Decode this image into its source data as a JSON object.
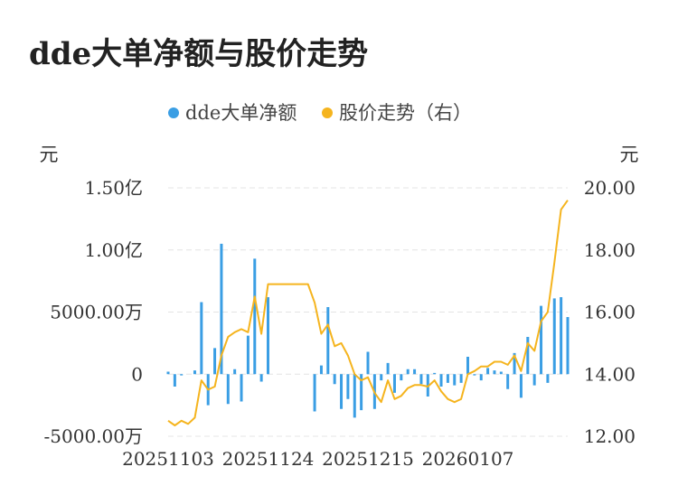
{
  "title": "dde大单净额与股价走势",
  "chart_data": {
    "type": "bar",
    "title": "dde大单净额与股价走势",
    "legend_position": "top-center",
    "grid": true,
    "left_axis": {
      "unit": "元",
      "ylim": [
        -50000000,
        150000000
      ],
      "ticks": [
        {
          "value": 150000000,
          "label": "1.50亿"
        },
        {
          "value": 100000000,
          "label": "1.00亿"
        },
        {
          "value": 50000000,
          "label": "5000.00万"
        },
        {
          "value": 0,
          "label": "0"
        },
        {
          "value": -50000000,
          "label": "-5000.00万"
        }
      ]
    },
    "right_axis": {
      "unit": "元",
      "ylim": [
        12,
        20
      ],
      "ticks": [
        {
          "value": 20,
          "label": "20.00"
        },
        {
          "value": 18,
          "label": "18.00"
        },
        {
          "value": 16,
          "label": "16.00"
        },
        {
          "value": 14,
          "label": "14.00"
        },
        {
          "value": 12,
          "label": "12.00"
        }
      ]
    },
    "x_tick_labels": [
      {
        "index": 0,
        "label": "20251103"
      },
      {
        "index": 15,
        "label": "20251124"
      },
      {
        "index": 30,
        "label": "20251215"
      },
      {
        "index": 45,
        "label": "20260107"
      }
    ],
    "series": [
      {
        "name": "dde大单净额",
        "color": "#3a9ee4",
        "axis": "left",
        "chart": "bar",
        "values": [
          2,
          -10,
          -1,
          0,
          3,
          58,
          -25,
          21,
          105,
          -24,
          4,
          -22,
          31,
          93,
          -6,
          62,
          0,
          0,
          0,
          0,
          0,
          0,
          -30,
          7,
          54,
          -8,
          -28,
          -20,
          -35,
          -29,
          18,
          -28,
          -5,
          9,
          -15,
          -5,
          4,
          4,
          -8,
          -18,
          1,
          -10,
          -7,
          -9,
          -7,
          14,
          -1,
          -5,
          5,
          3,
          2,
          -12,
          17,
          -19,
          30,
          -9,
          55,
          -7,
          61,
          62,
          46
        ]
      },
      {
        "name": "股价走势（右）",
        "color": "#f5b41e",
        "axis": "right",
        "chart": "line",
        "values": [
          12.5,
          12.35,
          12.5,
          12.4,
          12.6,
          13.8,
          13.5,
          13.6,
          14.6,
          15.2,
          15.35,
          15.45,
          15.35,
          16.5,
          15.3,
          16.9,
          16.9,
          16.9,
          16.9,
          16.9,
          16.9,
          16.9,
          16.3,
          15.3,
          15.6,
          14.9,
          15.0,
          14.6,
          14.0,
          13.8,
          13.9,
          13.4,
          13.1,
          13.8,
          13.2,
          13.3,
          13.55,
          13.65,
          13.65,
          13.6,
          13.8,
          13.45,
          13.2,
          13.1,
          13.2,
          14.0,
          14.1,
          14.25,
          14.25,
          14.4,
          14.4,
          14.3,
          14.6,
          14.1,
          15.0,
          14.75,
          15.7,
          16.0,
          17.6,
          19.3,
          19.6
        ]
      }
    ]
  }
}
